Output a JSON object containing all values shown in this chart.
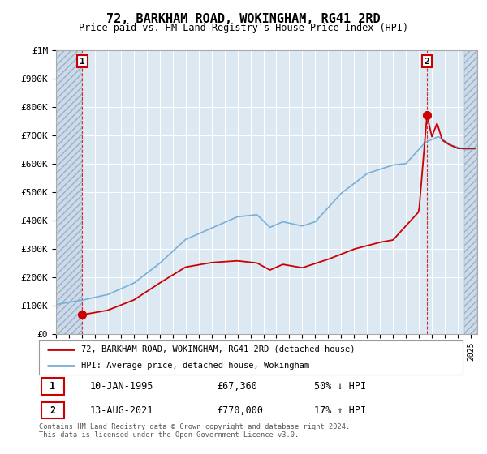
{
  "title": "72, BARKHAM ROAD, WOKINGHAM, RG41 2RD",
  "subtitle": "Price paid vs. HM Land Registry's House Price Index (HPI)",
  "ylim": [
    0,
    1000000
  ],
  "yticks": [
    0,
    100000,
    200000,
    300000,
    400000,
    500000,
    600000,
    700000,
    800000,
    900000,
    1000000
  ],
  "ytick_labels": [
    "£0",
    "£100K",
    "£200K",
    "£300K",
    "£400K",
    "£500K",
    "£600K",
    "£700K",
    "£800K",
    "£900K",
    "£1M"
  ],
  "xlim_start": 1993.0,
  "xlim_end": 2025.5,
  "xticks": [
    1993,
    1994,
    1995,
    1996,
    1997,
    1998,
    1999,
    2000,
    2001,
    2002,
    2003,
    2004,
    2005,
    2006,
    2007,
    2008,
    2009,
    2010,
    2011,
    2012,
    2013,
    2014,
    2015,
    2016,
    2017,
    2018,
    2019,
    2020,
    2021,
    2022,
    2023,
    2024,
    2025
  ],
  "hatch_left_end": 1995.0,
  "hatch_right_start": 2024.5,
  "sale1_x": 1995.03,
  "sale1_y": 67360,
  "sale1_label": "1",
  "sale1_date": "10-JAN-1995",
  "sale1_price": "£67,360",
  "sale1_hpi": "50% ↓ HPI",
  "sale2_x": 2021.62,
  "sale2_y": 770000,
  "sale2_label": "2",
  "sale2_date": "13-AUG-2021",
  "sale2_price": "£770,000",
  "sale2_hpi": "17% ↑ HPI",
  "legend_line1": "72, BARKHAM ROAD, WOKINGHAM, RG41 2RD (detached house)",
  "legend_line2": "HPI: Average price, detached house, Wokingham",
  "footer": "Contains HM Land Registry data © Crown copyright and database right 2024.\nThis data is licensed under the Open Government Licence v3.0.",
  "plot_bg": "#dce8f2",
  "grid_color": "#ffffff",
  "hatch_bg": "#cddaea",
  "hatch_pattern": "////",
  "line_red": "#cc0000",
  "line_blue": "#7aaed6",
  "marker_color": "#cc0000",
  "box_edge_color": "#cc0000",
  "title_fontsize": 11,
  "subtitle_fontsize": 9
}
